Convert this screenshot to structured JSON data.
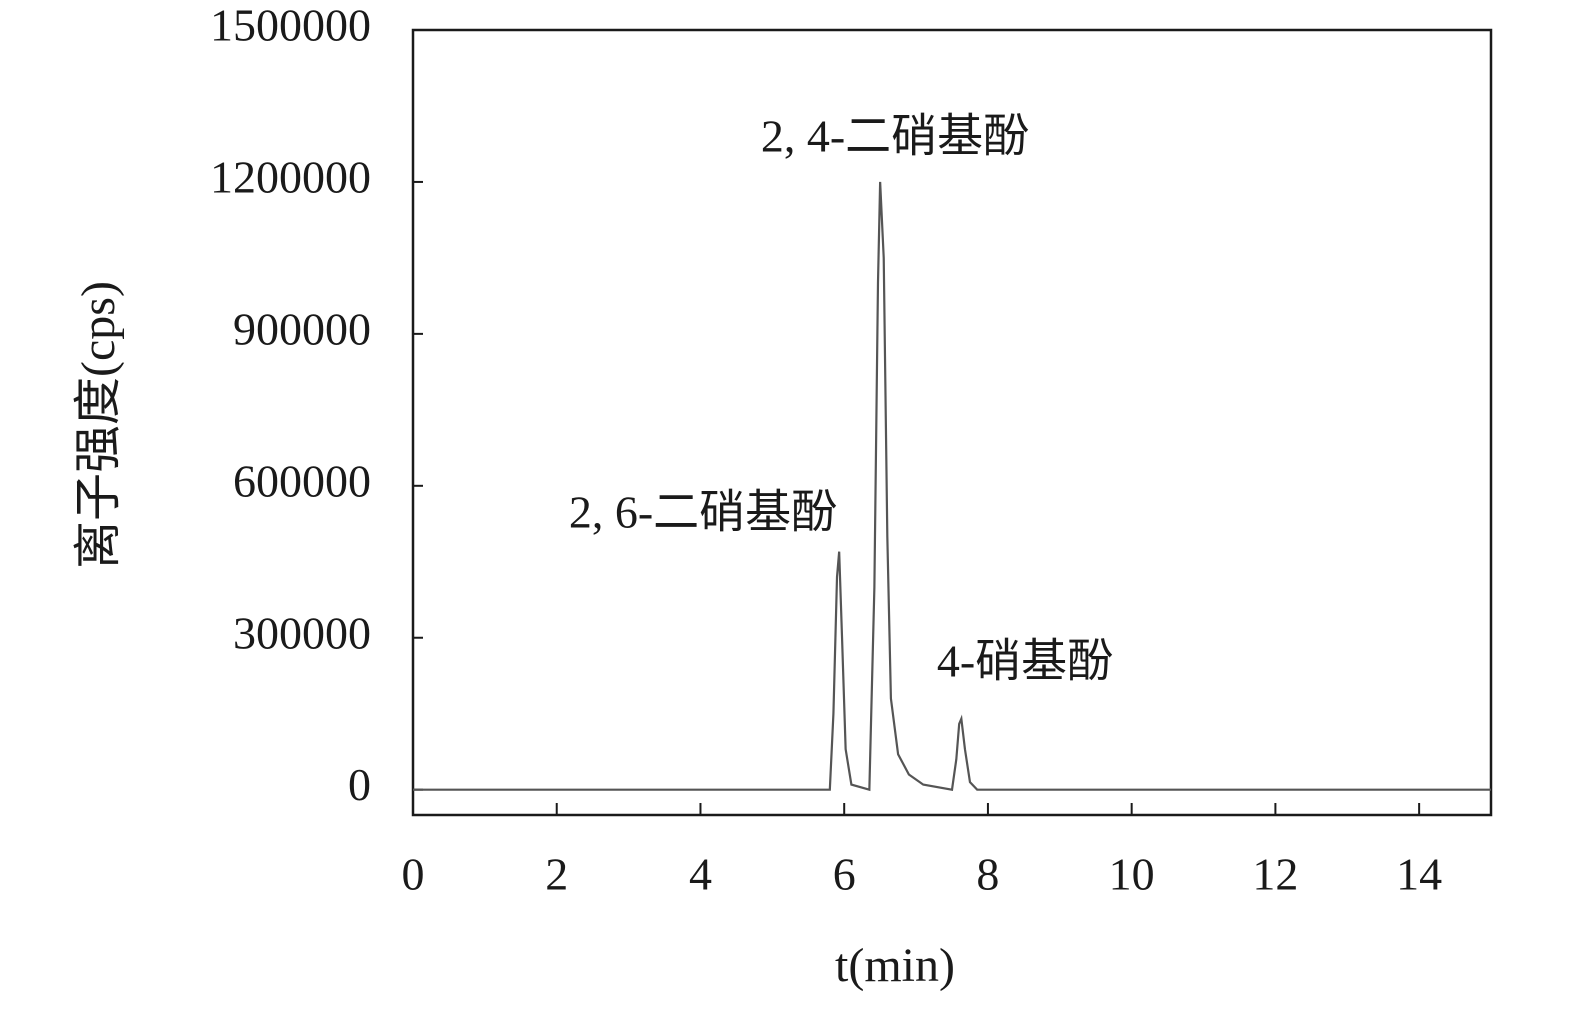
{
  "chart_data": {
    "type": "line",
    "xlabel": "t(min)",
    "ylabel": "离子强度(cps)",
    "x": [
      0,
      5.8,
      5.85,
      5.9,
      5.93,
      5.97,
      6.02,
      6.1,
      6.35,
      6.42,
      6.47,
      6.5,
      6.55,
      6.6,
      6.65,
      6.75,
      6.9,
      7.1,
      7.5,
      7.56,
      7.6,
      7.63,
      7.68,
      7.75,
      7.85,
      15
    ],
    "series": [
      {
        "color": "#555555",
        "values": [
          0,
          0,
          150000,
          420000,
          470000,
          300000,
          80000,
          10000,
          0,
          400000,
          1000000,
          1200000,
          1050000,
          500000,
          180000,
          70000,
          30000,
          10000,
          0,
          60000,
          130000,
          140000,
          80000,
          15000,
          0,
          0
        ]
      }
    ],
    "xlim": [
      0,
      15
    ],
    "ylim": [
      -50000,
      1500000
    ],
    "xticks": [
      0,
      2,
      4,
      6,
      8,
      10,
      12,
      14
    ],
    "yticks": [
      0,
      300000,
      600000,
      900000,
      1200000,
      1500000
    ],
    "annotations": [
      "2, 6-二硝基酚",
      "2, 4-二硝基酚",
      "4-硝基酚"
    ]
  }
}
